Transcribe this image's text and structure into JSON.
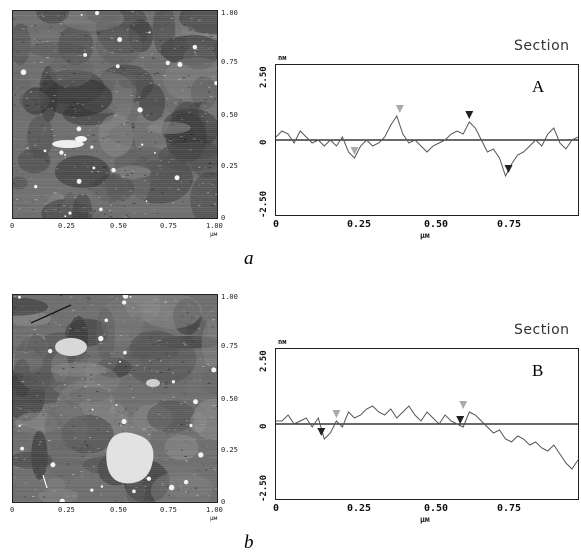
{
  "panels": [
    {
      "id": "a",
      "caption": "a",
      "profile_letter": "A",
      "section_title": "Section",
      "image_ticks_x": [
        "0",
        "0.25",
        "0.50",
        "0.75",
        "1.00"
      ],
      "image_ticks_y": [
        "1.00",
        "0.75",
        "0.50",
        "0.25",
        "0"
      ],
      "image_unit": "µм",
      "y_unit": "nм",
      "x_unit": "µм",
      "y_ticks": [
        "2.50",
        "0",
        "-2.50"
      ],
      "x_ticks": [
        "0",
        "0.25",
        "0.50",
        "0.75"
      ]
    },
    {
      "id": "b",
      "caption": "b",
      "profile_letter": "B",
      "section_title": "Section",
      "image_ticks_x": [
        "0",
        "0.25",
        "0.50",
        "0.75",
        "1.00"
      ],
      "image_ticks_y": [
        "1.00",
        "0.75",
        "0.50",
        "0.25",
        "0"
      ],
      "image_unit": "µм",
      "y_unit": "nм",
      "x_unit": "µм",
      "y_ticks": [
        "2.50",
        "0",
        "-2.50"
      ],
      "x_ticks": [
        "0",
        "0.25",
        "0.50",
        "0.75"
      ]
    }
  ],
  "chart_data": [
    {
      "type": "line",
      "xlabel": "µм",
      "ylabel": "nм",
      "xlim": [
        0,
        1.0
      ],
      "ylim": [
        -2.5,
        2.5
      ],
      "x": [
        0.0,
        0.02,
        0.04,
        0.06,
        0.08,
        0.1,
        0.12,
        0.14,
        0.16,
        0.18,
        0.2,
        0.22,
        0.24,
        0.26,
        0.28,
        0.3,
        0.32,
        0.34,
        0.36,
        0.38,
        0.4,
        0.42,
        0.44,
        0.46,
        0.48,
        0.5,
        0.52,
        0.54,
        0.56,
        0.58,
        0.6,
        0.62,
        0.64,
        0.66,
        0.68,
        0.7,
        0.72,
        0.74,
        0.76,
        0.78,
        0.8,
        0.82,
        0.84,
        0.86,
        0.88,
        0.9,
        0.92,
        0.94,
        0.96,
        0.98,
        1.0
      ],
      "series": [
        {
          "values": [
            0.1,
            0.3,
            0.2,
            -0.1,
            0.3,
            0.1,
            -0.1,
            0.0,
            -0.2,
            0.0,
            -0.2,
            0.1,
            -0.4,
            -0.6,
            -0.2,
            0.0,
            -0.2,
            -0.1,
            0.1,
            0.5,
            0.8,
            0.2,
            -0.1,
            0.0,
            -0.2,
            -0.4,
            -0.2,
            -0.1,
            0.0,
            0.2,
            0.3,
            0.2,
            0.6,
            0.4,
            0.0,
            -0.4,
            -0.3,
            -0.6,
            -1.2,
            -0.8,
            -0.5,
            -0.4,
            -0.2,
            0.0,
            -0.2,
            0.2,
            0.4,
            -0.1,
            -0.3,
            0.0,
            0.1
          ]
        }
      ],
      "markers": [
        {
          "x": 0.26,
          "y": -0.6,
          "shade": "light"
        },
        {
          "x": 0.41,
          "y": 0.8,
          "shade": "light"
        },
        {
          "x": 0.64,
          "y": 0.6,
          "shade": "dark"
        },
        {
          "x": 0.77,
          "y": -1.2,
          "shade": "dark"
        }
      ]
    },
    {
      "type": "line",
      "xlabel": "µм",
      "ylabel": "nм",
      "xlim": [
        0,
        1.0
      ],
      "ylim": [
        -2.5,
        2.5
      ],
      "x": [
        0.0,
        0.02,
        0.04,
        0.06,
        0.08,
        0.1,
        0.12,
        0.14,
        0.16,
        0.18,
        0.2,
        0.22,
        0.24,
        0.26,
        0.28,
        0.3,
        0.32,
        0.34,
        0.36,
        0.38,
        0.4,
        0.42,
        0.44,
        0.46,
        0.48,
        0.5,
        0.52,
        0.54,
        0.56,
        0.58,
        0.6,
        0.62,
        0.64,
        0.66,
        0.68,
        0.7,
        0.72,
        0.74,
        0.76,
        0.78,
        0.8,
        0.82,
        0.84,
        0.86,
        0.88,
        0.9,
        0.92,
        0.94,
        0.96,
        0.98,
        1.0
      ],
      "series": [
        {
          "values": [
            0.1,
            0.1,
            0.3,
            0.0,
            0.1,
            0.2,
            -0.1,
            0.2,
            -0.5,
            -0.3,
            0.1,
            -0.1,
            0.4,
            0.2,
            0.3,
            0.5,
            0.6,
            0.4,
            0.3,
            0.5,
            0.2,
            0.4,
            0.6,
            0.3,
            0.1,
            0.4,
            0.2,
            0.0,
            0.3,
            0.1,
            0.0,
            -0.1,
            0.4,
            0.3,
            0.1,
            -0.1,
            -0.3,
            -0.2,
            -0.5,
            -0.6,
            -0.4,
            -0.5,
            -0.7,
            -0.6,
            -0.8,
            -0.9,
            -0.7,
            -1.0,
            -1.3,
            -1.5,
            -1.2
          ]
        }
      ],
      "markers": [
        {
          "x": 0.15,
          "y": -0.5,
          "shade": "dark"
        },
        {
          "x": 0.2,
          "y": 0.1,
          "shade": "light"
        },
        {
          "x": 0.61,
          "y": -0.1,
          "shade": "dark"
        },
        {
          "x": 0.62,
          "y": 0.4,
          "shade": "light"
        }
      ]
    }
  ]
}
